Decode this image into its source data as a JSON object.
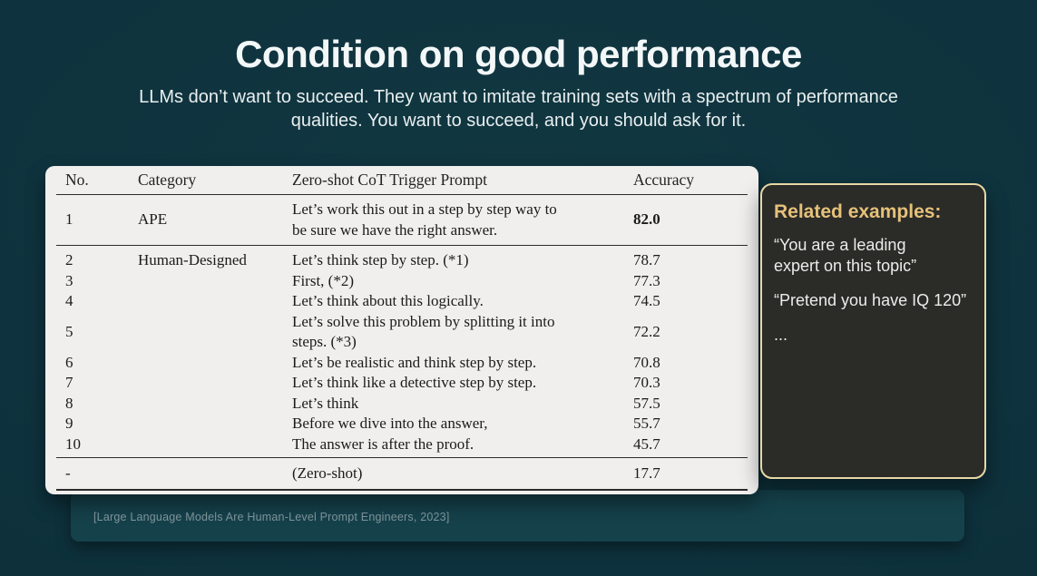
{
  "slide": {
    "title": "Condition on good performance",
    "subtitle": "LLMs don’t want to succeed. They want to imitate training sets with a spectrum of performance\nqualities. You want to succeed, and you should ask for it.",
    "citation": "[Large Language Models Are Human-Level Prompt Engineers, 2023]"
  },
  "table": {
    "headers": [
      "No.",
      "Category",
      "Zero-shot CoT Trigger Prompt",
      "Accuracy"
    ],
    "rows": [
      {
        "no": "1",
        "category": "APE",
        "prompt": "Let’s work this out in a step by step way to\nbe sure we have the right answer.",
        "accuracy": "82.0",
        "bold": true
      },
      {
        "no": "2",
        "category": "Human-Designed",
        "prompt": "Let’s think step by step. (*1)",
        "accuracy": "78.7",
        "bold": false
      },
      {
        "no": "3",
        "category": "",
        "prompt": "First, (*2)",
        "accuracy": "77.3",
        "bold": false
      },
      {
        "no": "4",
        "category": "",
        "prompt": "Let’s think about this logically.",
        "accuracy": "74.5",
        "bold": false
      },
      {
        "no": "5",
        "category": "",
        "prompt": "Let’s solve this problem by splitting it into\nsteps. (*3)",
        "accuracy": "72.2",
        "bold": false
      },
      {
        "no": "6",
        "category": "",
        "prompt": "Let’s be realistic and think step by step.",
        "accuracy": "70.8",
        "bold": false
      },
      {
        "no": "7",
        "category": "",
        "prompt": "Let’s think like a detective step by step.",
        "accuracy": "70.3",
        "bold": false
      },
      {
        "no": "8",
        "category": "",
        "prompt": "Let’s think",
        "accuracy": "57.5",
        "bold": false
      },
      {
        "no": "9",
        "category": "",
        "prompt": "Before we dive into the answer,",
        "accuracy": "55.7",
        "bold": false
      },
      {
        "no": "10",
        "category": "",
        "prompt": "The answer is after the proof.",
        "accuracy": "45.7",
        "bold": false
      },
      {
        "no": "-",
        "category": "",
        "prompt": "(Zero-shot)",
        "accuracy": "17.7",
        "bold": false
      }
    ]
  },
  "panel": {
    "heading": "Related examples:",
    "items": [
      "“You are a leading\nexpert on this topic”",
      "“Pretend you have IQ 120”",
      "..."
    ]
  },
  "colors": {
    "background_teal": "#0e323d",
    "table_card": "#f0efed",
    "table_text": "#1b1b1b",
    "table_rule": "#2b2b2b",
    "panel_background": "#2b2b28",
    "panel_border": "#e8d8a6",
    "panel_heading_gold": "#e6c179",
    "panel_text": "#ececea",
    "citation_card": "#15414b",
    "citation_text": "#82989d",
    "title_text": "#f3f7f8"
  }
}
